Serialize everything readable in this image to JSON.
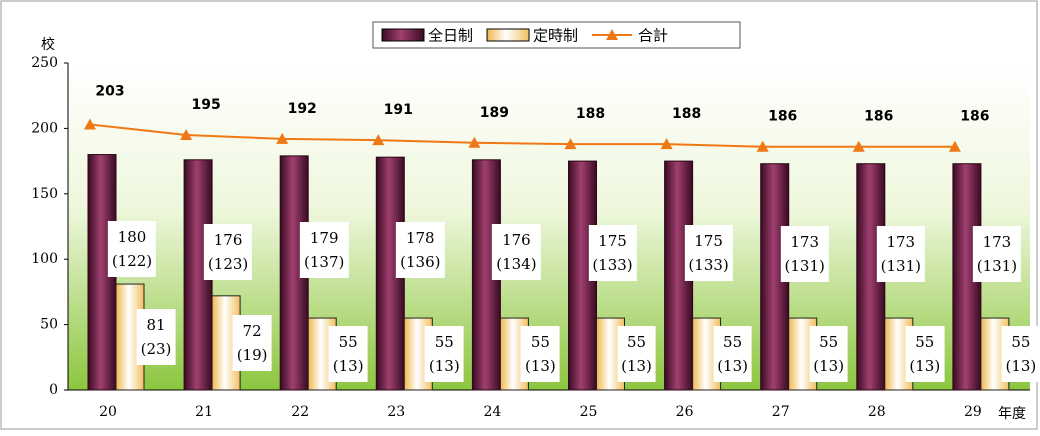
{
  "chart_data": {
    "type": "bar",
    "y_label": "校",
    "x_label": "年度",
    "categories": [
      "20",
      "21",
      "22",
      "23",
      "24",
      "25",
      "26",
      "27",
      "28",
      "29"
    ],
    "series": [
      {
        "name": "全日制",
        "color": "#7a1f4a",
        "values": [
          180,
          176,
          179,
          178,
          176,
          175,
          175,
          173,
          173,
          173
        ],
        "value_labels": [
          "180\n(122)",
          "176\n(123)",
          "179\n(137)",
          "178\n(136)",
          "176\n(134)",
          "175\n(133)",
          "175\n(133)",
          "173\n(131)",
          "173\n(131)",
          "173\n(131)"
        ]
      },
      {
        "name": "定時制",
        "color": "#fff3c0",
        "values": [
          81,
          72,
          55,
          55,
          55,
          55,
          55,
          55,
          55,
          55
        ],
        "value_labels": [
          "81\n(23)",
          "72\n(19)",
          "55\n(13)",
          "55\n(13)",
          "55\n(13)",
          "55\n(13)",
          "55\n(13)",
          "55\n(13)",
          "55\n(13)",
          "55\n(13)"
        ]
      },
      {
        "name": "合計",
        "type": "line",
        "color": "#f07814",
        "values": [
          203,
          195,
          192,
          191,
          189,
          188,
          188,
          186,
          186,
          186
        ]
      }
    ],
    "ylim": [
      0,
      250
    ],
    "yticks": [
      0,
      50,
      100,
      150,
      200,
      250
    ]
  }
}
